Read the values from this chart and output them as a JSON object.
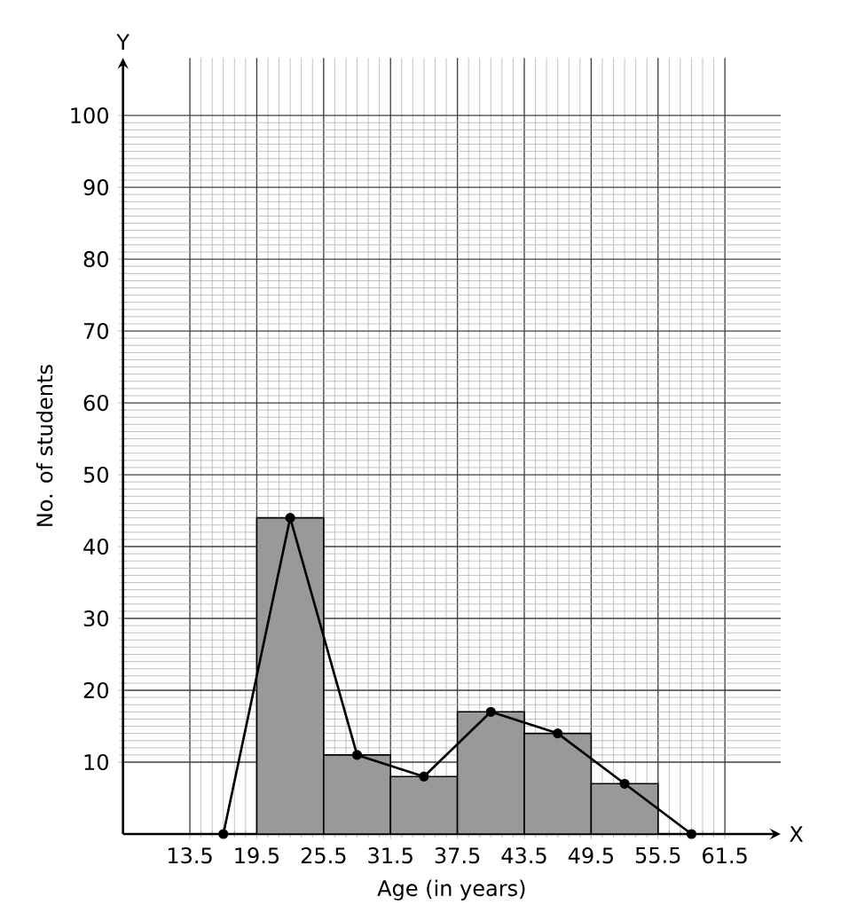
{
  "chart_data": {
    "type": "histogram",
    "xlabel": "Age (in years)",
    "ylabel": "No. of students",
    "annotations": [
      "X",
      "Y"
    ],
    "xlim": [
      7.5,
      66.5
    ],
    "ylim": [
      0,
      108
    ],
    "xticks": [
      13.5,
      19.5,
      25.5,
      31.5,
      37.5,
      43.5,
      49.5,
      55.5,
      61.5
    ],
    "yticks": [
      10,
      20,
      30,
      40,
      50,
      60,
      70,
      80,
      90,
      100
    ],
    "grid": true,
    "marker": "circle",
    "series": [
      {
        "bins": [
          19.5,
          25.5,
          31.5,
          37.5,
          43.5,
          49.5,
          55.5
        ],
        "values": [
          44,
          11,
          8,
          17,
          14,
          7
        ],
        "color": "#999999"
      },
      {
        "type": "line",
        "x": [
          16.5,
          22.5,
          28.5,
          34.5,
          40.5,
          46.5,
          52.5,
          58.5
        ],
        "values": [
          0,
          44,
          11,
          8,
          17,
          14,
          7,
          0
        ],
        "color": "#000000"
      }
    ]
  }
}
